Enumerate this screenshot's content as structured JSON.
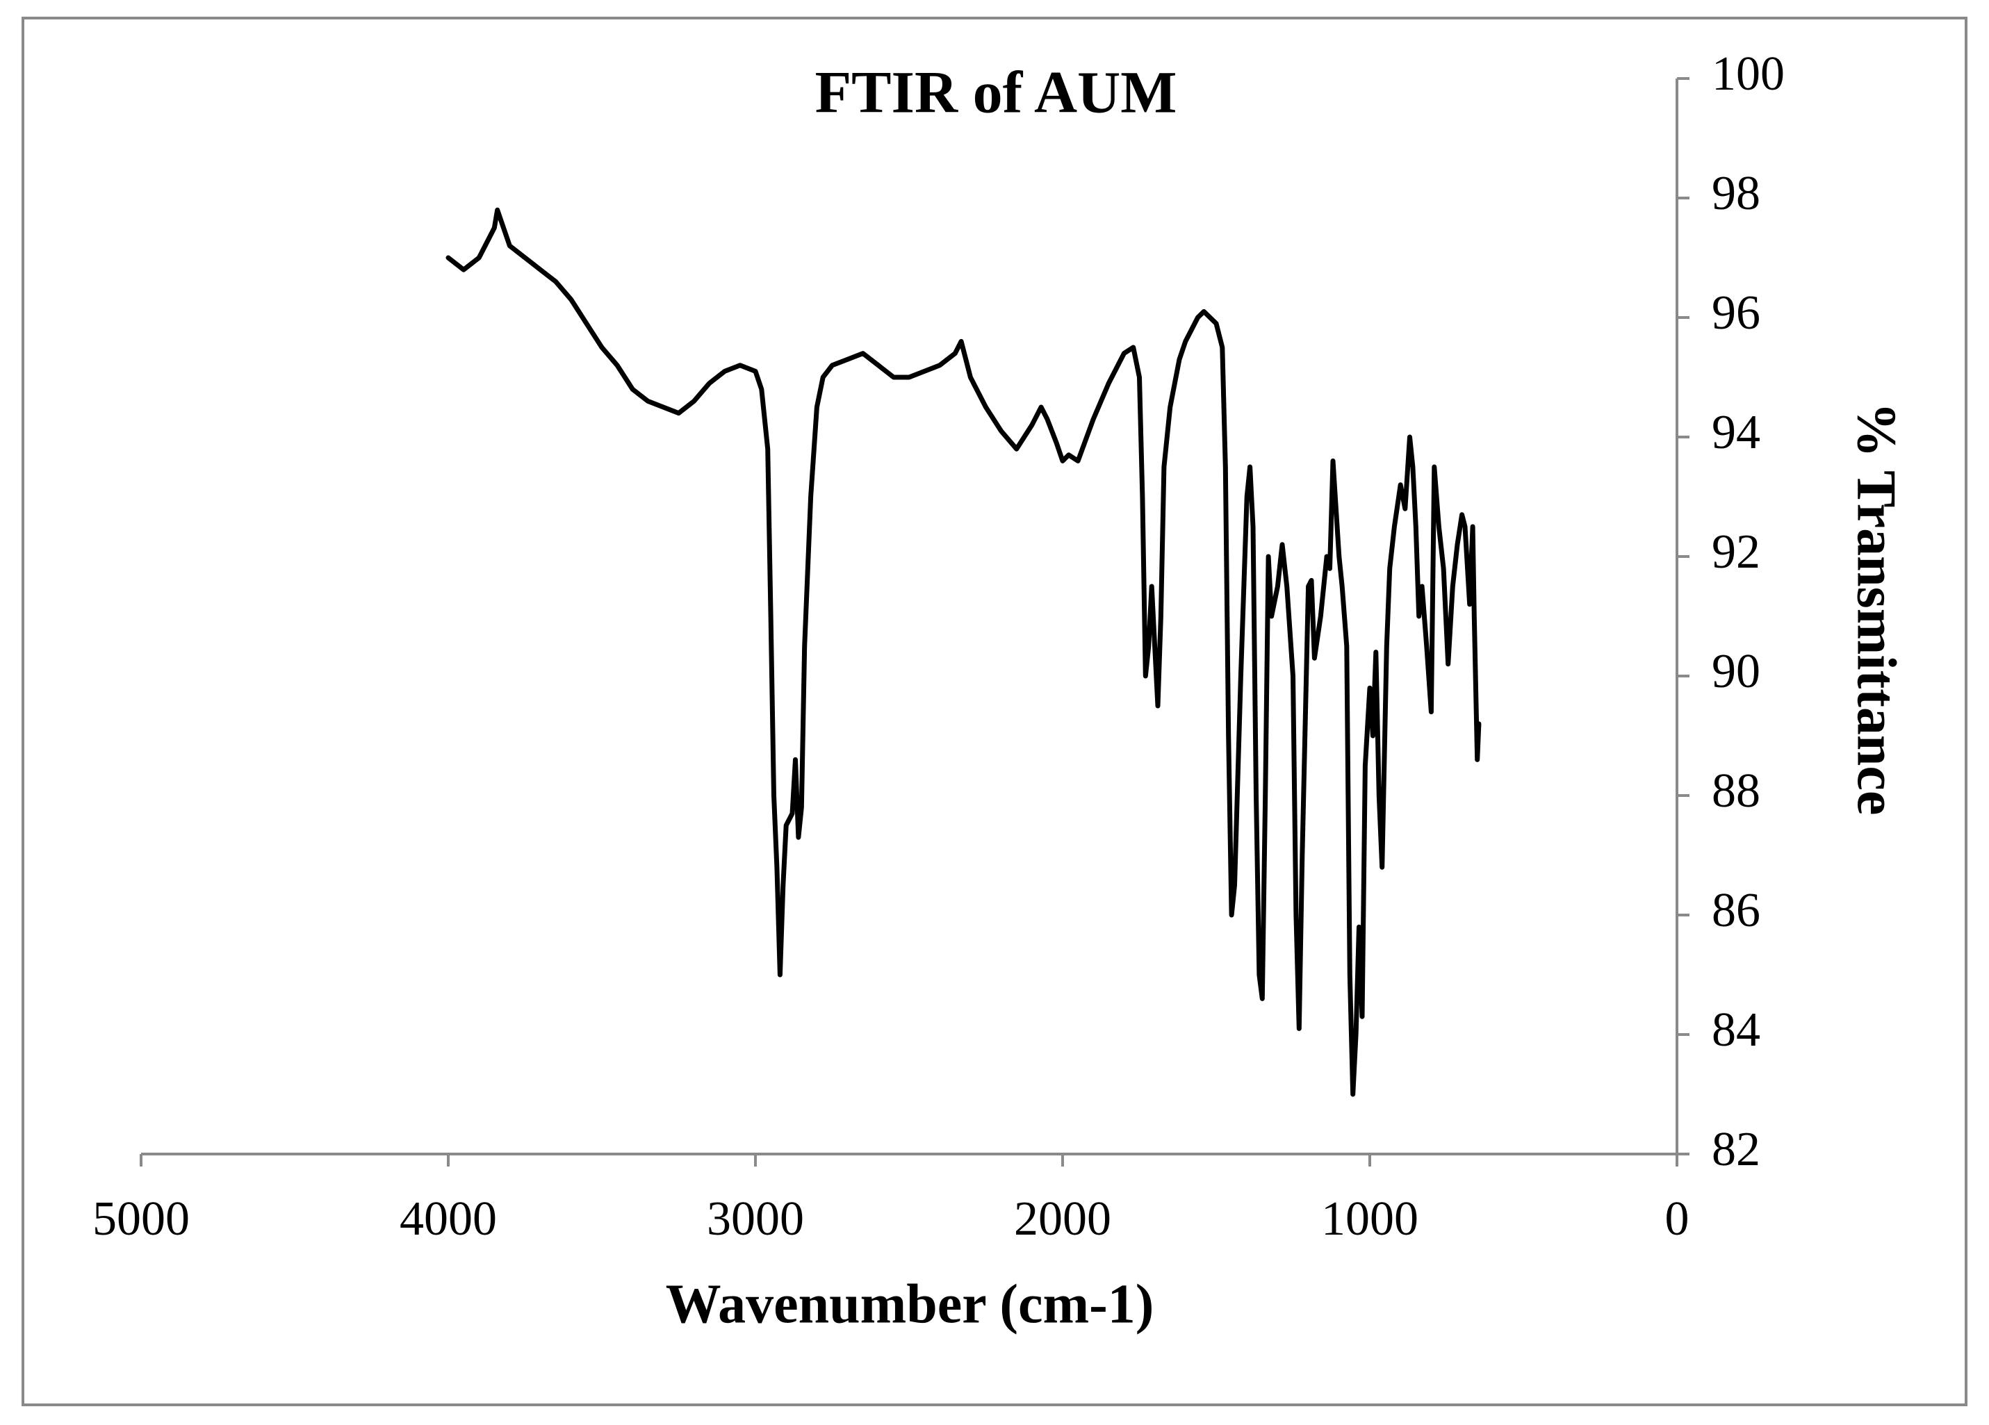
{
  "chart_data": {
    "type": "line",
    "title": "FTIR of AUM",
    "x_label": "Wavenumber (cm-1)",
    "y_label": "% Transmittance",
    "x": [
      4000,
      3950,
      3900,
      3850,
      3840,
      3800,
      3750,
      3700,
      3650,
      3600,
      3550,
      3500,
      3450,
      3400,
      3350,
      3300,
      3250,
      3200,
      3150,
      3100,
      3050,
      3000,
      2980,
      2960,
      2950,
      2940,
      2930,
      2920,
      2910,
      2900,
      2880,
      2870,
      2860,
      2850,
      2840,
      2820,
      2800,
      2780,
      2750,
      2700,
      2650,
      2600,
      2550,
      2500,
      2450,
      2400,
      2350,
      2330,
      2300,
      2250,
      2200,
      2150,
      2100,
      2070,
      2050,
      2020,
      2000,
      1980,
      1950,
      1900,
      1850,
      1800,
      1770,
      1750,
      1740,
      1730,
      1720,
      1710,
      1700,
      1690,
      1680,
      1670,
      1650,
      1620,
      1600,
      1560,
      1540,
      1500,
      1480,
      1470,
      1460,
      1450,
      1440,
      1420,
      1400,
      1390,
      1380,
      1370,
      1360,
      1350,
      1340,
      1330,
      1320,
      1300,
      1285,
      1270,
      1250,
      1240,
      1230,
      1220,
      1200,
      1190,
      1180,
      1160,
      1140,
      1130,
      1120,
      1100,
      1090,
      1075,
      1065,
      1055,
      1045,
      1035,
      1025,
      1015,
      1000,
      990,
      980,
      970,
      960,
      945,
      935,
      920,
      900,
      885,
      870,
      860,
      850,
      840,
      830,
      815,
      800,
      790,
      775,
      760,
      745,
      730,
      715,
      700,
      690,
      675,
      665,
      660,
      650,
      645
    ],
    "series": [
      {
        "color": "#000000",
        "values": [
          97.0,
          96.8,
          97.0,
          97.5,
          97.8,
          97.2,
          97.0,
          96.8,
          96.6,
          96.3,
          95.9,
          95.5,
          95.2,
          94.8,
          94.6,
          94.5,
          94.4,
          94.6,
          94.9,
          95.1,
          95.2,
          95.1,
          94.8,
          93.8,
          91.0,
          88.0,
          86.8,
          85.0,
          86.5,
          87.5,
          87.7,
          88.6,
          87.3,
          87.8,
          90.5,
          93.0,
          94.5,
          95.0,
          95.2,
          95.3,
          95.4,
          95.2,
          95.0,
          95.0,
          95.1,
          95.2,
          95.4,
          95.6,
          95.0,
          94.5,
          94.1,
          93.8,
          94.2,
          94.5,
          94.3,
          93.9,
          93.6,
          93.7,
          93.6,
          94.3,
          94.9,
          95.4,
          95.5,
          95.0,
          93.0,
          90.0,
          90.5,
          91.5,
          90.5,
          89.5,
          91.0,
          93.5,
          94.5,
          95.3,
          95.6,
          96.0,
          96.1,
          95.9,
          95.5,
          93.5,
          89.0,
          86.0,
          86.5,
          90.0,
          93.0,
          93.5,
          92.5,
          88.0,
          85.0,
          84.6,
          88.0,
          92.0,
          91.0,
          91.5,
          92.2,
          91.5,
          90.0,
          86.0,
          84.1,
          87.0,
          91.5,
          91.6,
          90.3,
          91.0,
          92.0,
          91.8,
          93.6,
          92.0,
          91.5,
          90.5,
          85.0,
          83.0,
          84.0,
          85.8,
          84.3,
          88.5,
          89.8,
          89.0,
          90.4,
          88.0,
          86.8,
          90.5,
          91.8,
          92.5,
          93.2,
          92.8,
          94.0,
          93.5,
          92.5,
          91.0,
          91.5,
          90.5,
          89.4,
          93.5,
          92.5,
          91.8,
          90.2,
          91.5,
          92.2,
          92.7,
          92.5,
          91.2,
          92.5,
          91.0,
          88.6,
          89.2
        ]
      }
    ],
    "xlim": [
      0,
      5000
    ],
    "xticks": [
      5000,
      4000,
      3000,
      2000,
      1000,
      0
    ],
    "x_reversed": true,
    "ylim": [
      82,
      100
    ],
    "yticks": [
      82,
      84,
      86,
      88,
      90,
      92,
      94,
      96,
      98,
      100
    ],
    "y_axis_side": "right",
    "grid": false
  }
}
